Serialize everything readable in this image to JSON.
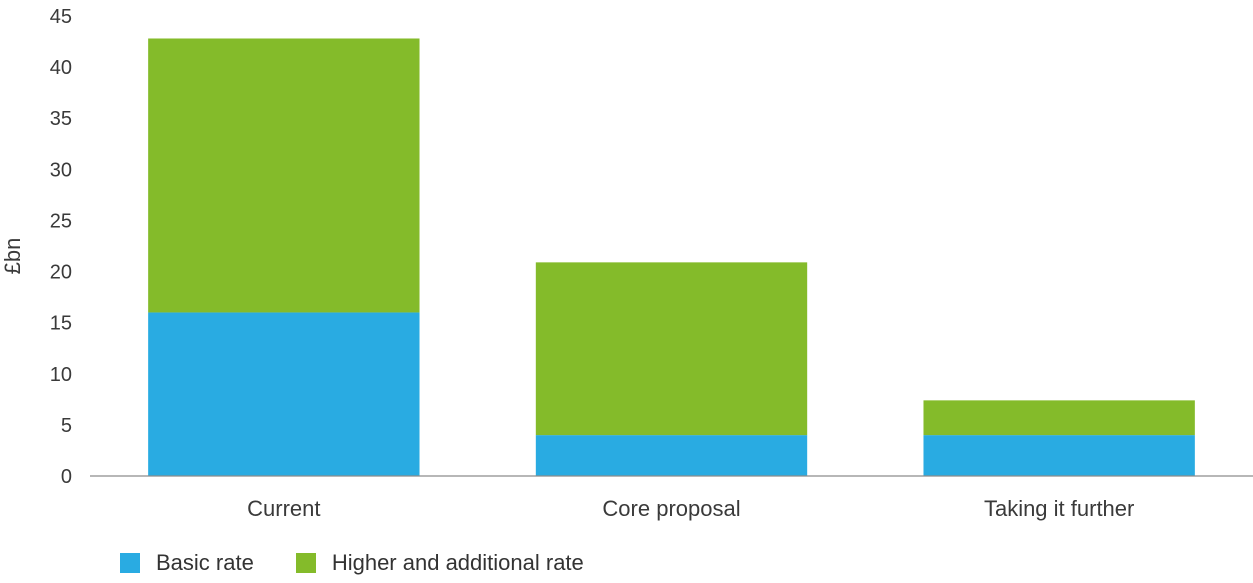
{
  "chart_data": {
    "type": "bar",
    "stacked": true,
    "categories": [
      "Current",
      "Core proposal",
      "Taking it further"
    ],
    "series": [
      {
        "name": "Basic rate",
        "values": [
          16,
          4,
          4
        ],
        "color": "#29ABE2"
      },
      {
        "name": "Higher and additional rate",
        "values": [
          26.8,
          16.9,
          3.4
        ],
        "color": "#84BB2A"
      }
    ],
    "ylabel": "£bn",
    "ylim": [
      0,
      45
    ],
    "yticks": [
      0,
      5,
      10,
      15,
      20,
      25,
      30,
      35,
      40,
      45
    ],
    "grid": false,
    "legend": "bottom-left"
  }
}
